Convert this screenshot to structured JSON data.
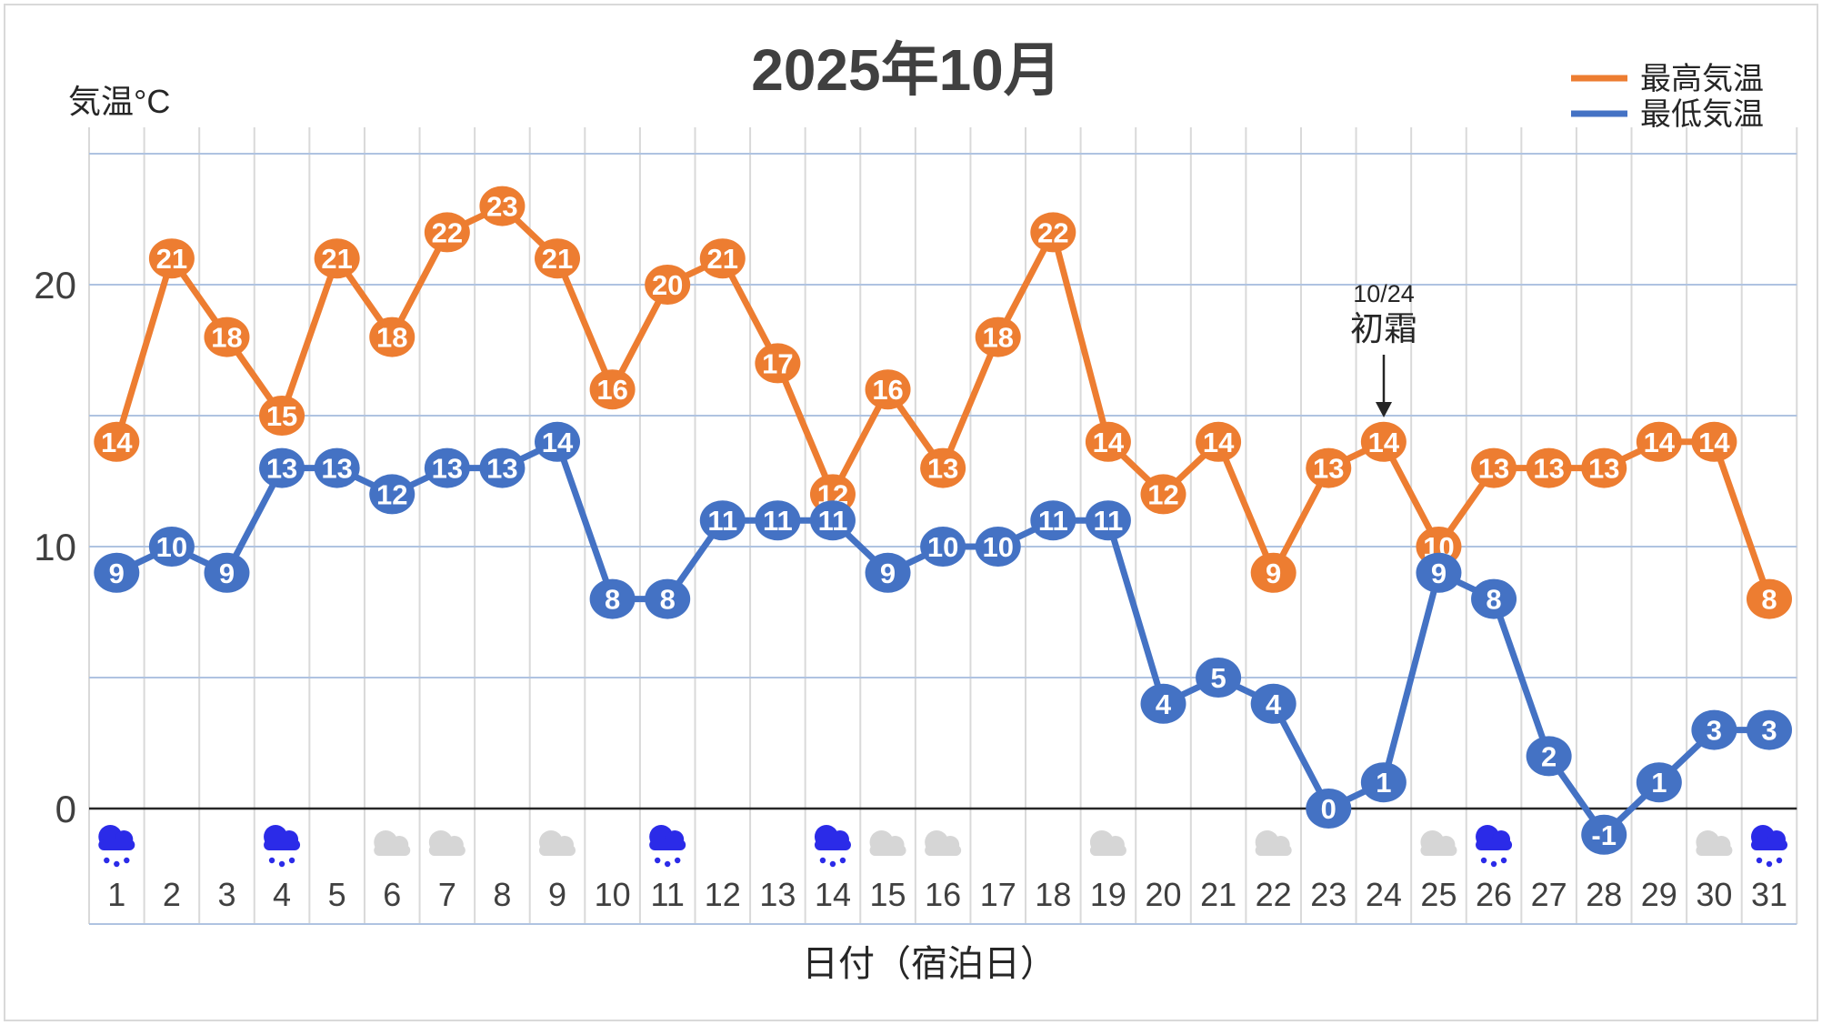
{
  "title": "2025年10月",
  "y_axis_label": "気温°C",
  "x_axis_label": "日付（宿泊日）",
  "legend": {
    "max": {
      "label": "最高気温",
      "color": "#ED7D31"
    },
    "min": {
      "label": "最低気温",
      "color": "#4472C4"
    }
  },
  "annotation": {
    "date_label": "10/24",
    "event_label": "初霜",
    "day": 24
  },
  "colors": {
    "max_series": "#ED7D31",
    "min_series": "#4472C4",
    "marker_text": "#FFFFFF",
    "title_text": "#404040",
    "axis_text": "#404040",
    "grid_vertical": "#D9D9D9",
    "grid_horizontal": "#AFC3E1",
    "zero_axis": "#262626",
    "rain_icon": "#2B2BE8",
    "cloud_icon": "#D6D6D6",
    "annotation_text": "#262626"
  },
  "chart_data": {
    "type": "line",
    "title": "2025年10月",
    "xlabel": "日付（宿泊日）",
    "ylabel": "気温°C",
    "categories": [
      1,
      2,
      3,
      4,
      5,
      6,
      7,
      8,
      9,
      10,
      11,
      12,
      13,
      14,
      15,
      16,
      17,
      18,
      19,
      20,
      21,
      22,
      23,
      24,
      25,
      26,
      27,
      28,
      29,
      30,
      31
    ],
    "series": [
      {
        "name": "最高気温",
        "color": "#ED7D31",
        "values": [
          14,
          21,
          18,
          15,
          21,
          18,
          22,
          23,
          21,
          16,
          20,
          21,
          17,
          12,
          16,
          13,
          18,
          22,
          14,
          12,
          14,
          9,
          13,
          14,
          10,
          13,
          13,
          13,
          14,
          14,
          8
        ]
      },
      {
        "name": "最低気温",
        "color": "#4472C4",
        "values": [
          9,
          10,
          9,
          13,
          13,
          12,
          13,
          13,
          14,
          8,
          8,
          11,
          11,
          11,
          9,
          10,
          10,
          11,
          11,
          4,
          5,
          4,
          0,
          1,
          9,
          8,
          2,
          -1,
          1,
          3,
          3
        ]
      }
    ],
    "ylim": [
      -4,
      26
    ],
    "yticks": [
      0,
      10,
      20
    ],
    "gridlines_y": [
      5,
      10,
      15,
      20,
      25
    ],
    "grid": true,
    "legend_position": "top-right",
    "data_labels": "on-point",
    "weather_icons": {
      "rain_days": [
        1,
        4,
        11,
        14,
        26,
        31
      ],
      "cloud_days": [
        6,
        7,
        9,
        15,
        16,
        19,
        22,
        25,
        30
      ]
    }
  }
}
